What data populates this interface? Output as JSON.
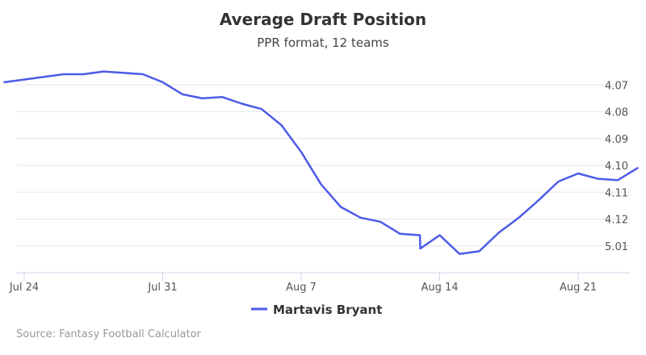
{
  "chart_data": {
    "type": "line",
    "title": "Average Draft Position",
    "subtitle": "PPR format, 12 teams",
    "xlabel": "",
    "ylabel": "",
    "x_ticks": [
      "Jul 24",
      "Jul 31",
      "Aug 7",
      "Aug 14",
      "Aug 21"
    ],
    "y_ticks": [
      "4.07",
      "4.08",
      "4.09",
      "4.10",
      "4.11",
      "4.12",
      "5.01"
    ],
    "y_note": "Axis reversed: earlier picks at top. Values expressed as overall pick number (12-team league; 4.07 = 43, 5.01 = 49).",
    "ylim": [
      42,
      50
    ],
    "xlim": [
      "Jul 24",
      "Aug 26"
    ],
    "grid": true,
    "legend_position": "bottom-center",
    "series": [
      {
        "name": "Martavis Bryant",
        "color": "#4C5BE8",
        "points": [
          {
            "x": "Jul 23",
            "y": 42.9
          },
          {
            "x": "Jul 24",
            "y": 42.8
          },
          {
            "x": "Jul 25",
            "y": 42.7
          },
          {
            "x": "Jul 26",
            "y": 42.6
          },
          {
            "x": "Jul 27",
            "y": 42.6
          },
          {
            "x": "Jul 28",
            "y": 42.5
          },
          {
            "x": "Jul 29",
            "y": 42.55
          },
          {
            "x": "Jul 30",
            "y": 42.6
          },
          {
            "x": "Jul 31",
            "y": 42.9
          },
          {
            "x": "Aug 1",
            "y": 43.35
          },
          {
            "x": "Aug 2",
            "y": 43.5
          },
          {
            "x": "Aug 3",
            "y": 43.45
          },
          {
            "x": "Aug 4",
            "y": 43.7
          },
          {
            "x": "Aug 5",
            "y": 43.9
          },
          {
            "x": "Aug 6",
            "y": 44.5
          },
          {
            "x": "Aug 7",
            "y": 45.5
          },
          {
            "x": "Aug 8",
            "y": 46.7
          },
          {
            "x": "Aug 9",
            "y": 47.55
          },
          {
            "x": "Aug 10",
            "y": 47.95
          },
          {
            "x": "Aug 11",
            "y": 48.1
          },
          {
            "x": "Aug 12",
            "y": 48.55
          },
          {
            "x": "Aug 13",
            "y": 48.6
          },
          {
            "x": "Aug 13",
            "y": 49.1
          },
          {
            "x": "Aug 14",
            "y": 48.6
          },
          {
            "x": "Aug 15",
            "y": 49.3
          },
          {
            "x": "Aug 16",
            "y": 49.2
          },
          {
            "x": "Aug 17",
            "y": 48.5
          },
          {
            "x": "Aug 18",
            "y": 47.95
          },
          {
            "x": "Aug 19",
            "y": 47.3
          },
          {
            "x": "Aug 20",
            "y": 46.6
          },
          {
            "x": "Aug 21",
            "y": 46.3
          },
          {
            "x": "Aug 22",
            "y": 46.5
          },
          {
            "x": "Aug 23",
            "y": 46.55
          },
          {
            "x": "Aug 24",
            "y": 46.1
          }
        ]
      }
    ]
  },
  "footer": {
    "source": "Source: Fantasy Football Calculator"
  }
}
